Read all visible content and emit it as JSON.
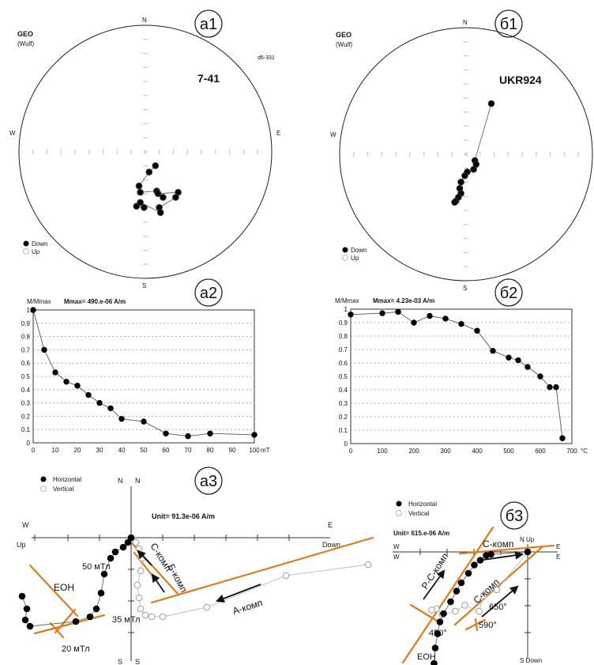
{
  "panel_labels": [
    "а1",
    "б1",
    "а2",
    "б2",
    "а3",
    "б3"
  ],
  "chart_data": [
    {
      "id": "a1",
      "type": "scatter",
      "projection": "GEO (Wulf)",
      "header": "GEO",
      "subheader": "(Wulf)",
      "code": "d6-331",
      "sample": "7-41",
      "compass": {
        "n": "N",
        "s": "S",
        "e": "E",
        "w": "W"
      },
      "legend": {
        "down": "Down",
        "up": "Up"
      },
      "points": [
        {
          "x": 8,
          "y": -11,
          "d": "down"
        },
        {
          "x": 3,
          "y": -16,
          "d": "down"
        },
        {
          "x": -5,
          "y": -27,
          "d": "down"
        },
        {
          "x": -4,
          "y": -32,
          "d": "down"
        },
        {
          "x": 9,
          "y": -31,
          "d": "down"
        },
        {
          "x": 14,
          "y": -36,
          "d": "down"
        },
        {
          "x": 10,
          "y": -33,
          "d": "down"
        },
        {
          "x": 26,
          "y": -32,
          "d": "down"
        },
        {
          "x": 24,
          "y": -36,
          "d": "down"
        },
        {
          "x": 11,
          "y": -44,
          "d": "down"
        },
        {
          "x": 12,
          "y": -48,
          "d": "down"
        },
        {
          "x": -4,
          "y": -40,
          "d": "down"
        },
        {
          "x": -1,
          "y": -44,
          "d": "down"
        },
        {
          "x": -7,
          "y": -43,
          "d": "down"
        }
      ]
    },
    {
      "id": "b1",
      "type": "scatter",
      "projection": "GEO (Wulf)",
      "header": "GEO",
      "subheader": "(Wulf)",
      "sample": "UKR924",
      "compass": {
        "n": "N",
        "s": "S",
        "e": "E",
        "w": "W"
      },
      "legend": {
        "down": "Down",
        "up": "Up"
      },
      "points": [
        {
          "x": 20,
          "y": 40,
          "d": "down"
        },
        {
          "x": 7,
          "y": -5,
          "d": "down"
        },
        {
          "x": 8,
          "y": -8,
          "d": "down"
        },
        {
          "x": 6,
          "y": -12,
          "d": "down"
        },
        {
          "x": 1,
          "y": -14,
          "d": "down"
        },
        {
          "x": -1,
          "y": -17,
          "d": "down"
        },
        {
          "x": -4,
          "y": -22,
          "d": "down"
        },
        {
          "x": -5,
          "y": -27,
          "d": "down"
        },
        {
          "x": -4,
          "y": -31,
          "d": "down"
        },
        {
          "x": -6,
          "y": -34,
          "d": "down"
        },
        {
          "x": -8,
          "y": -37,
          "d": "down"
        },
        {
          "x": -9,
          "y": -38,
          "d": "down"
        }
      ]
    },
    {
      "id": "a2",
      "type": "line",
      "ylabel": "M/Mmax",
      "mmax": "Mmax= 490.e-06  A/m",
      "xunit": "mT",
      "x": [
        0,
        5,
        10,
        15,
        20,
        25,
        30,
        35,
        40,
        50,
        60,
        70,
        80,
        100
      ],
      "y": [
        1.0,
        0.7,
        0.53,
        0.46,
        0.43,
        0.36,
        0.3,
        0.26,
        0.18,
        0.16,
        0.07,
        0.05,
        0.07,
        0.06
      ],
      "xlim": [
        0,
        100
      ],
      "ylim": [
        0,
        1
      ],
      "xticks": [
        "0",
        "10",
        "20",
        "30",
        "40",
        "50",
        "60",
        "70",
        "80",
        "90",
        "100"
      ],
      "yticks": [
        "0",
        "0.1",
        "0.2",
        "0.3",
        "0.4",
        "0.5",
        "0.6",
        "0.7",
        "0.8",
        "0.9",
        "1"
      ],
      "grid": true
    },
    {
      "id": "b2",
      "type": "line",
      "ylabel": "M/Mmax",
      "mmax": "Mmax= 4.23e-03  A/m",
      "xunit": "°C",
      "x": [
        0,
        100,
        150,
        200,
        250,
        300,
        350,
        400,
        450,
        500,
        530,
        560,
        600,
        630,
        650,
        670
      ],
      "y": [
        0.96,
        0.97,
        0.98,
        0.9,
        0.95,
        0.93,
        0.89,
        0.84,
        0.69,
        0.64,
        0.62,
        0.57,
        0.5,
        0.42,
        0.42,
        0.04
      ],
      "xlim": [
        0,
        700
      ],
      "ylim": [
        0,
        1
      ],
      "xticks": [
        "0",
        "100",
        "200",
        "300",
        "400",
        "500",
        "600",
        "700"
      ],
      "yticks": [
        "0",
        "0.1",
        "0.2",
        "0.3",
        "0.4",
        "0.5",
        "0.6",
        "0.7",
        "0.8",
        "0.9",
        "1"
      ],
      "grid": true
    },
    {
      "id": "a3",
      "type": "scatter",
      "projection": "Zijderveld",
      "unit": "Unit=  91.3e-06 A/m",
      "legend": {
        "horizontal": "Horizontal",
        "vertical": "Vertical"
      },
      "axis_labels": {
        "n1": "N",
        "n2": "N",
        "s1": "S",
        "s2": "S",
        "w": "W",
        "up": "Up",
        "e": "E",
        "down": "Down"
      },
      "horizontal": [
        [
          0,
          0
        ],
        [
          -0.2,
          -0.3
        ],
        [
          -0.5,
          -0.6
        ],
        [
          -1.0,
          -0.9
        ],
        [
          -1.3,
          -1.3
        ],
        [
          -1.7,
          -2.3
        ],
        [
          -1.9,
          -3.5
        ],
        [
          -2.2,
          -4.5
        ],
        [
          -2.6,
          -5.0
        ],
        [
          -3.5,
          -5.3
        ],
        [
          -6.4,
          -5.6
        ],
        [
          -6.7,
          -5.2
        ],
        [
          -6.6,
          -4.5
        ],
        [
          -6.9,
          -3.7
        ]
      ],
      "vertical": [
        [
          0,
          0
        ],
        [
          0.3,
          -0.3
        ],
        [
          0.5,
          -0.7
        ],
        [
          0.7,
          -1.3
        ],
        [
          0.6,
          -2.1
        ],
        [
          0.4,
          -3.0
        ],
        [
          0.5,
          -3.8
        ],
        [
          0.6,
          -4.5
        ],
        [
          0.9,
          -4.9
        ],
        [
          1.3,
          -5.0
        ],
        [
          2.0,
          -5.0
        ],
        [
          4.8,
          -4.4
        ],
        [
          9.8,
          -2.4
        ],
        [
          15.0,
          -1.7
        ]
      ],
      "annotations": [
        "С-комп",
        "Б-комп",
        "А-комп",
        "ЕОН",
        "50 мТл",
        "35 мТл",
        "20 мТл"
      ]
    },
    {
      "id": "b3",
      "type": "scatter",
      "projection": "Zijderveld",
      "unit": "Unit=  615.e-06 A/m",
      "legend": {
        "horizontal": "Horizontal",
        "vertical": "Vertical"
      },
      "axis_labels": {
        "n_up": "N  Up",
        "w1": "W",
        "w2": "W",
        "e1": "E",
        "e2": "E",
        "s_down": "S  Down"
      },
      "horizontal": [
        [
          0,
          0
        ],
        [
          -3.1,
          -0.2
        ],
        [
          -3.5,
          -0.3
        ],
        [
          -4.0,
          -0.7
        ],
        [
          -4.5,
          -1.1
        ],
        [
          -5.0,
          -1.8
        ],
        [
          -5.6,
          -2.6
        ],
        [
          -6.0,
          -3.3
        ],
        [
          -6.5,
          -4.2
        ],
        [
          -7.1,
          -5.2
        ],
        [
          -7.4,
          -5.9
        ],
        [
          -7.6,
          -6.9
        ],
        [
          -7.8,
          -8.1
        ],
        [
          -7.9,
          -9.4
        ]
      ],
      "vertical": [
        [
          0,
          0
        ],
        [
          -2.6,
          -3.2
        ],
        [
          -3.7,
          -3.7
        ],
        [
          -4.1,
          -5.0
        ],
        [
          -5.3,
          -4.5
        ],
        [
          -6.1,
          -5.0
        ],
        [
          -7.2,
          -5.3
        ],
        [
          -7.7,
          -4.8
        ],
        [
          -8.1,
          -4.9
        ]
      ],
      "annotations": [
        "С-комп",
        "Р-С-комп",
        "С-комп",
        "650°",
        "590°",
        "450°",
        "ЕОН"
      ]
    }
  ]
}
